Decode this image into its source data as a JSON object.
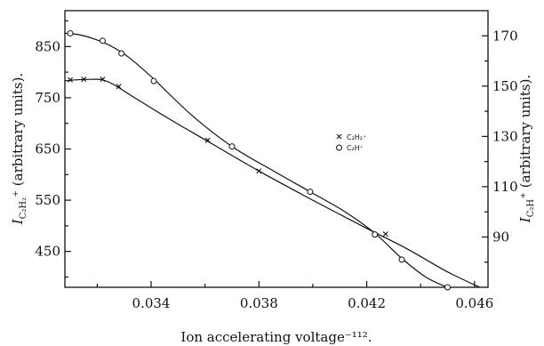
{
  "chart_data": {
    "type": "line",
    "title": "",
    "xlabel": "Ion accelerating voltage⁻¹¹².",
    "ylabel_left": {
      "main": "I",
      "sub": "C₂H₂",
      "suffix": "⁺ (arbitrary units)."
    },
    "ylabel_right": {
      "main": "I",
      "sub": "C₂H",
      "suffix": "⁺ (arbitrary units)."
    },
    "xlim": [
      0.0308,
      0.0465
    ],
    "ylim_left": [
      380,
      920
    ],
    "ylim_right": [
      70,
      180
    ],
    "x_ticks": [
      0.034,
      0.038,
      0.042,
      0.046
    ],
    "x_tick_labels": [
      "0.034",
      "0.038",
      "0.042",
      "0.046"
    ],
    "y_left_ticks": [
      450,
      550,
      650,
      750,
      850
    ],
    "y_left_tick_labels": [
      "450",
      "550",
      "650",
      "750",
      "850"
    ],
    "y_right_ticks": [
      90,
      110,
      130,
      150,
      170
    ],
    "y_right_tick_labels": [
      "90",
      "110",
      "130",
      "150",
      "170"
    ],
    "legend_position": "center-right",
    "grid": false,
    "series": [
      {
        "name": "C₂H₂⁺",
        "axis": "left",
        "marker": "cross",
        "points": [
          [
            0.031,
            785
          ],
          [
            0.0315,
            786
          ],
          [
            0.0322,
            786
          ],
          [
            0.0328,
            772
          ],
          [
            0.0361,
            667
          ],
          [
            0.038,
            607
          ],
          [
            0.0427,
            484
          ]
        ],
        "curve": [
          [
            0.0308,
            783
          ],
          [
            0.0312,
            785
          ],
          [
            0.0318,
            786
          ],
          [
            0.0322,
            785
          ],
          [
            0.0326,
            776
          ],
          [
            0.0333,
            753
          ],
          [
            0.0345,
            714
          ],
          [
            0.0361,
            665
          ],
          [
            0.038,
            607
          ],
          [
            0.04,
            550
          ],
          [
            0.042,
            495
          ],
          [
            0.0435,
            455
          ],
          [
            0.045,
            410
          ],
          [
            0.0464,
            375
          ]
        ]
      },
      {
        "name": "C₂H⁺",
        "axis": "right",
        "marker": "circle",
        "points": [
          [
            0.031,
            171
          ],
          [
            0.0322,
            168
          ],
          [
            0.0329,
            163
          ],
          [
            0.0341,
            152
          ],
          [
            0.037,
            126
          ],
          [
            0.0399,
            108
          ],
          [
            0.0423,
            91
          ],
          [
            0.0433,
            81
          ],
          [
            0.045,
            70
          ]
        ],
        "curve": [
          [
            0.0308,
            171
          ],
          [
            0.0313,
            170.5
          ],
          [
            0.0319,
            168.7
          ],
          [
            0.0325,
            166
          ],
          [
            0.0332,
            161.2
          ],
          [
            0.0341,
            152.8
          ],
          [
            0.0355,
            138.5
          ],
          [
            0.037,
            126
          ],
          [
            0.0385,
            116.5
          ],
          [
            0.0399,
            108
          ],
          [
            0.0412,
            100
          ],
          [
            0.0423,
            91.5
          ],
          [
            0.0433,
            81.5
          ],
          [
            0.0442,
            74
          ],
          [
            0.0451,
            69.5
          ]
        ]
      }
    ]
  },
  "colors": {
    "ink": "#111111",
    "background": "#ffffff"
  }
}
